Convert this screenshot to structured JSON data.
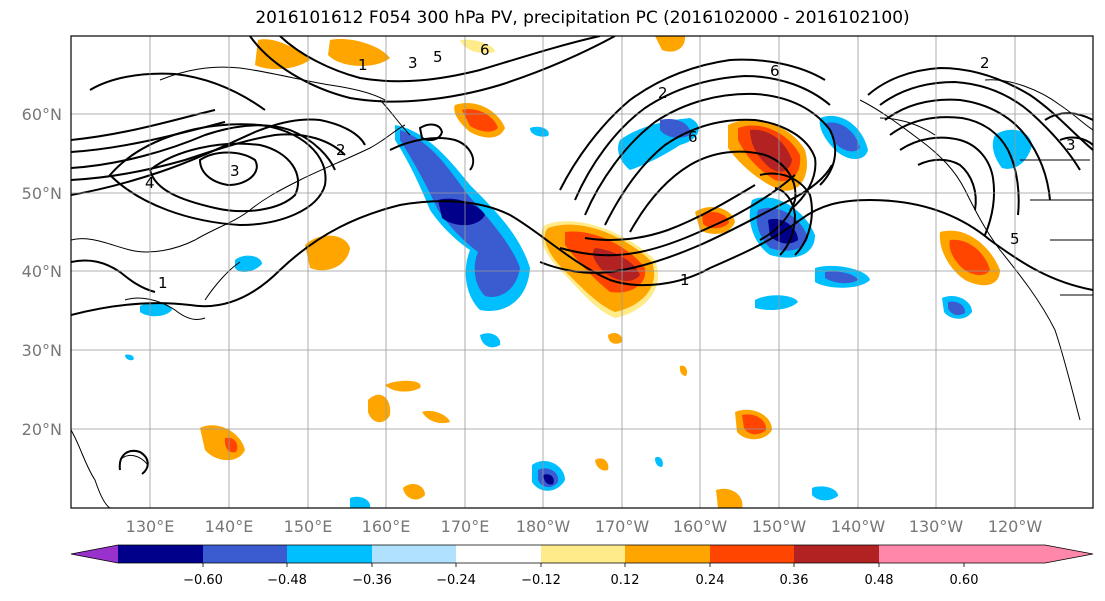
{
  "title": "2016101612 F054 300 hPa PV, precipitation PC (2016102000 - 2016102100)",
  "lat_labels": [
    "60°N",
    "50°N",
    "40°N",
    "30°N",
    "20°N"
  ],
  "lon_labels": [
    "130°E",
    "140°E",
    "150°E",
    "160°E",
    "170°E",
    "180°W",
    "170°W",
    "160°W",
    "150°W",
    "140°W",
    "130°W",
    "120°W"
  ],
  "colorbar": {
    "colors": [
      "#9932CC",
      "#00008B",
      "#3B5BD1",
      "#00BFFF",
      "#B0E2FF",
      "#FFFFFF",
      "#FFEB8A",
      "#FFA500",
      "#FF4500",
      "#B22222",
      "#FF88AA"
    ],
    "ticks": [
      "−0.60",
      "−0.48",
      "−0.36",
      "−0.24",
      "−0.12",
      "0.12",
      "0.24",
      "0.36",
      "0.48",
      "0.60"
    ]
  },
  "contour_labels": [
    {
      "id": "c1a",
      "text": "1"
    },
    {
      "id": "c1b",
      "text": "1"
    },
    {
      "id": "c1c",
      "text": "1"
    },
    {
      "id": "c2a",
      "text": "2"
    },
    {
      "id": "c2b",
      "text": "2"
    },
    {
      "id": "c2c",
      "text": "2"
    },
    {
      "id": "c3a",
      "text": "3"
    },
    {
      "id": "c3b",
      "text": "3"
    },
    {
      "id": "c3c",
      "text": "3"
    },
    {
      "id": "c4a",
      "text": "4"
    },
    {
      "id": "c5a",
      "text": "5"
    },
    {
      "id": "c5b",
      "text": "5"
    },
    {
      "id": "c6a",
      "text": "6"
    },
    {
      "id": "c6b",
      "text": "6"
    },
    {
      "id": "c6c",
      "text": "6"
    }
  ]
}
